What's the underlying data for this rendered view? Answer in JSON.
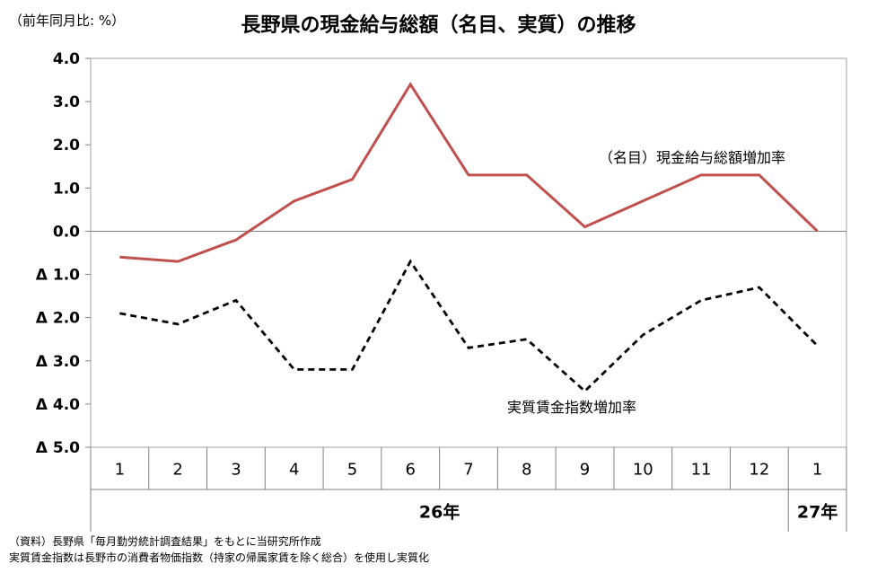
{
  "chart_data": {
    "type": "line",
    "title": "長野県の現金給与総額（名目、実質）の推移",
    "unit_label": "（前年同月比: %）",
    "categories": [
      "1",
      "2",
      "3",
      "4",
      "5",
      "6",
      "7",
      "8",
      "9",
      "10",
      "11",
      "12",
      "1"
    ],
    "year_groups": [
      {
        "label": "26年",
        "from": 0,
        "to": 11
      },
      {
        "label": "27年",
        "from": 12,
        "to": 12
      }
    ],
    "ylim": [
      -5.0,
      4.0
    ],
    "yticks": [
      4.0,
      3.0,
      2.0,
      1.0,
      0.0,
      -1.0,
      -2.0,
      -3.0,
      -4.0,
      -5.0
    ],
    "ytick_labels": [
      "4.0",
      "3.0",
      "2.0",
      "1.0",
      "0.0",
      "Δ 1.0",
      "Δ 2.0",
      "Δ 3.0",
      "Δ 4.0",
      "Δ 5.0"
    ],
    "grid": false,
    "series": [
      {
        "name": "（名目）現金給与総額増加率",
        "color": "#c0504d",
        "style": "solid",
        "values": [
          -0.6,
          -0.7,
          -0.2,
          0.7,
          1.2,
          3.4,
          1.3,
          1.3,
          0.1,
          0.7,
          1.3,
          1.3,
          0.0
        ]
      },
      {
        "name": "実質賃金指数増加率",
        "color": "#000000",
        "style": "dashed",
        "values": [
          -1.9,
          -2.15,
          -1.6,
          -3.2,
          -3.2,
          -0.7,
          -2.7,
          -2.5,
          -3.7,
          -2.4,
          -1.6,
          -1.3,
          -2.65
        ]
      }
    ]
  },
  "notes": [
    "（資料）長野県「毎月勤労統計調査結果」をもとに当研究所作成",
    "実質賃金指数は長野市の消費者物価指数（持家の帰属家賃を除く総合）を使用し実質化"
  ]
}
